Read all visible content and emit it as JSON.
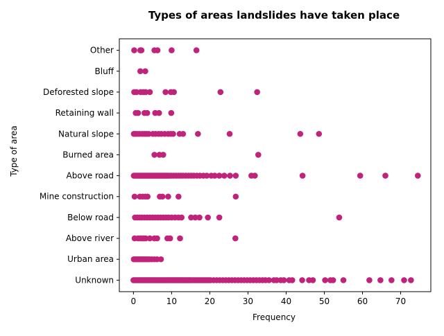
{
  "chart_data": {
    "type": "scatter",
    "title": "Types of areas landslides have taken place",
    "xlabel": "Frequency",
    "ylabel": "Type of area",
    "xlim": [
      -3.7,
      77.9
    ],
    "xticks": [
      0,
      10,
      20,
      30,
      40,
      50,
      60,
      70
    ],
    "grid": false,
    "marker_color": "#c0247a",
    "categories": [
      "Unknown",
      "Urban area",
      "Above river",
      "Below road",
      "Mine construction",
      "Above road",
      "Burned area",
      "Natural slope",
      "Retaining wall",
      "Deforested slope",
      "Bluff",
      "Other"
    ],
    "points": {
      "Other": [
        0.2,
        1.8,
        2.1,
        5.5,
        6.3,
        10.0,
        16.5
      ],
      "Bluff": [
        1.8,
        3.1
      ],
      "Deforested slope": [
        0.2,
        0.8,
        1.9,
        2.6,
        3.2,
        4.3,
        8.4,
        9.8,
        10.6,
        22.8,
        32.4
      ],
      "Retaining wall": [
        0.6,
        1.2,
        2.9,
        3.6,
        5.7,
        6.7,
        9.9
      ],
      "Natural slope": [
        0.1,
        0.5,
        1.0,
        1.6,
        2.3,
        2.9,
        3.4,
        4.0,
        5.1,
        5.8,
        6.6,
        7.3,
        8.2,
        9.1,
        9.8,
        10.4,
        12.1,
        13.0,
        16.9,
        25.2,
        43.7,
        48.6
      ],
      "Burned area": [
        5.5,
        6.8,
        7.8,
        32.7
      ],
      "Above road": [
        0.1,
        0.4,
        0.7,
        1.0,
        1.3,
        1.6,
        1.9,
        2.2,
        2.5,
        2.8,
        3.1,
        3.4,
        3.7,
        4.0,
        4.3,
        4.6,
        4.9,
        5.2,
        5.5,
        5.8,
        6.1,
        6.4,
        6.7,
        7.0,
        7.3,
        7.6,
        7.9,
        8.2,
        8.5,
        8.8,
        9.1,
        9.5,
        10.0,
        10.6,
        11.2,
        11.8,
        12.4,
        13.0,
        13.7,
        14.4,
        15.1,
        15.8,
        16.6,
        17.4,
        18.3,
        19.2,
        20.4,
        21.3,
        22.5,
        23.8,
        25.3,
        26.8,
        30.9,
        31.8,
        44.3,
        59.4,
        66.0,
        74.5
      ],
      "Mine construction": [
        0.3,
        1.7,
        2.4,
        3.1,
        3.7,
        6.9,
        7.6,
        9.1,
        11.8,
        26.8
      ],
      "Below road": [
        0.4,
        1.0,
        1.6,
        2.2,
        2.9,
        3.6,
        4.3,
        5.0,
        5.7,
        6.4,
        7.1,
        7.8,
        8.5,
        9.2,
        10.0,
        10.9,
        11.8,
        12.6,
        15.1,
        16.2,
        17.3,
        19.5,
        22.5,
        53.9
      ],
      "Above river": [
        0.3,
        1.2,
        1.8,
        2.3,
        2.7,
        3.2,
        4.3,
        5.5,
        6.2,
        8.9,
        9.6,
        12.2,
        26.7
      ],
      "Urban area": [
        0.1,
        0.5,
        0.9,
        1.3,
        1.7,
        2.1,
        2.5,
        2.9,
        3.3,
        3.7,
        4.2,
        4.8,
        5.5,
        6.2,
        7.2
      ],
      "Unknown": [
        0.0,
        0.3,
        0.6,
        0.9,
        1.2,
        1.5,
        1.8,
        2.1,
        2.4,
        2.7,
        3.0,
        3.3,
        3.6,
        3.9,
        4.2,
        4.5,
        4.8,
        5.1,
        5.4,
        5.7,
        6.0,
        6.3,
        6.6,
        6.9,
        7.2,
        7.5,
        7.8,
        8.1,
        8.4,
        8.7,
        9.0,
        9.3,
        9.6,
        9.9,
        10.2,
        10.5,
        10.8,
        11.1,
        11.4,
        11.7,
        12.0,
        12.3,
        12.6,
        12.9,
        13.2,
        13.5,
        13.8,
        14.1,
        14.4,
        14.7,
        15.0,
        15.4,
        15.8,
        16.2,
        16.6,
        17.0,
        17.4,
        17.8,
        18.2,
        18.6,
        19.0,
        19.4,
        19.8,
        20.2,
        21.0,
        21.8,
        22.6,
        23.4,
        24.2,
        25.0,
        25.8,
        26.6,
        27.4,
        28.2,
        29.0,
        29.8,
        30.6,
        31.4,
        32.2,
        33.0,
        33.8,
        34.6,
        35.5,
        36.8,
        37.5,
        38.6,
        39.4,
        40.8,
        41.6,
        44.2,
        46.0,
        47.0,
        50.2,
        51.6,
        52.3,
        55.0,
        61.8,
        64.7,
        67.6,
        70.9,
        72.7
      ]
    }
  }
}
